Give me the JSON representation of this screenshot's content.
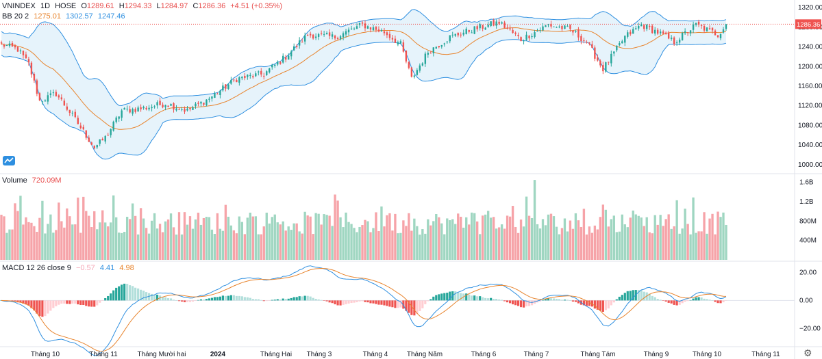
{
  "header": {
    "symbol": "VNINDEX",
    "interval": "1D",
    "exchange": "HOSE",
    "open_label": "O",
    "open": "1289.61",
    "high_label": "H",
    "high": "1294.33",
    "low_label": "L",
    "low": "1284.97",
    "close_label": "C",
    "close": "1286.36",
    "change": "+4.51 (+0.35%)"
  },
  "bb_legend": {
    "label": "BB 20 2",
    "basis": "1275.01",
    "upper": "1302.57",
    "lower": "1247.46"
  },
  "volume_legend": {
    "label": "Volume",
    "value": "720.09M"
  },
  "macd_legend": {
    "label": "MACD 12 26 close 9",
    "hist": "−0.57",
    "macd": "4.41",
    "signal": "4.98"
  },
  "price_badge": "1286.36",
  "colors": {
    "up": "#26a69a",
    "down": "#ef5350",
    "vol_up": "#9fd6c1",
    "vol_down": "#f6a3a8",
    "bb_band": "#2e8fe0",
    "bb_fill": "#e6f3fb",
    "basis": "#e8842d",
    "macd_line": "#2e8fe0",
    "signal_line": "#e8842d",
    "badge": "#ef5350"
  },
  "icons": {
    "logo": "tradingview-logo-icon",
    "settings": "gear-icon"
  },
  "chart_data": [
    {
      "type": "candlestick",
      "title": "VNINDEX 1D HOSE",
      "ylim": [
        990,
        1330
      ],
      "ytick_labels": [
        "1320.00",
        "1280.00",
        "1240.00",
        "1200.00",
        "1160.00",
        "1120.00",
        "1080.00",
        "1040.00",
        "1000.00"
      ],
      "ytick_values": [
        1320,
        1280,
        1240,
        1200,
        1160,
        1120,
        1080,
        1040,
        1000
      ],
      "xtick_labels": [
        "Tháng 10",
        "Tháng 11",
        "Tháng Mười hai",
        "2024",
        "Tháng Hai",
        "Tháng 3",
        "Tháng 4",
        "Tháng Năm",
        "Tháng 6",
        "Tháng 7",
        "Tháng Tám",
        "Tháng 9",
        "Tháng 10",
        "Tháng 11"
      ],
      "close_anchors": [
        {
          "bar": 0,
          "value": 1245
        },
        {
          "bar": 6,
          "value": 1235
        },
        {
          "bar": 10,
          "value": 1205
        },
        {
          "bar": 14,
          "value": 1130
        },
        {
          "bar": 20,
          "value": 1145
        },
        {
          "bar": 26,
          "value": 1100
        },
        {
          "bar": 34,
          "value": 1035
        },
        {
          "bar": 38,
          "value": 1055
        },
        {
          "bar": 44,
          "value": 1110
        },
        {
          "bar": 52,
          "value": 1115
        },
        {
          "bar": 60,
          "value": 1125
        },
        {
          "bar": 68,
          "value": 1110
        },
        {
          "bar": 76,
          "value": 1135
        },
        {
          "bar": 86,
          "value": 1175
        },
        {
          "bar": 96,
          "value": 1185
        },
        {
          "bar": 104,
          "value": 1220
        },
        {
          "bar": 112,
          "value": 1265
        },
        {
          "bar": 122,
          "value": 1260
        },
        {
          "bar": 132,
          "value": 1285
        },
        {
          "bar": 140,
          "value": 1270
        },
        {
          "bar": 146,
          "value": 1245
        },
        {
          "bar": 150,
          "value": 1175
        },
        {
          "bar": 156,
          "value": 1230
        },
        {
          "bar": 164,
          "value": 1260
        },
        {
          "bar": 172,
          "value": 1275
        },
        {
          "bar": 182,
          "value": 1290
        },
        {
          "bar": 190,
          "value": 1255
        },
        {
          "bar": 200,
          "value": 1285
        },
        {
          "bar": 208,
          "value": 1275
        },
        {
          "bar": 214,
          "value": 1250
        },
        {
          "bar": 220,
          "value": 1195
        },
        {
          "bar": 228,
          "value": 1260
        },
        {
          "bar": 234,
          "value": 1285
        },
        {
          "bar": 240,
          "value": 1270
        },
        {
          "bar": 246,
          "value": 1250
        },
        {
          "bar": 254,
          "value": 1285
        },
        {
          "bar": 262,
          "value": 1265
        },
        {
          "bar": 265,
          "value": 1286.36
        }
      ],
      "bars": 266
    },
    {
      "type": "bar",
      "title": "Volume",
      "ylim": [
        0,
        1750
      ],
      "unit": "M",
      "ytick_labels": [
        "1.6B",
        "1.2B",
        "800M",
        "400M"
      ],
      "ytick_values": [
        1600,
        1200,
        800,
        400
      ],
      "last_value": 720.09
    },
    {
      "type": "line",
      "title": "MACD 12 26 close 9",
      "ylim": [
        -32,
        27
      ],
      "ytick_labels": [
        "20.00",
        "0.00",
        "−20.00"
      ],
      "ytick_values": [
        20,
        0,
        -20
      ],
      "series": [
        {
          "name": "MACD",
          "last": 4.41
        },
        {
          "name": "Signal",
          "last": 4.98
        },
        {
          "name": "Histogram",
          "last": -0.57
        }
      ]
    }
  ]
}
